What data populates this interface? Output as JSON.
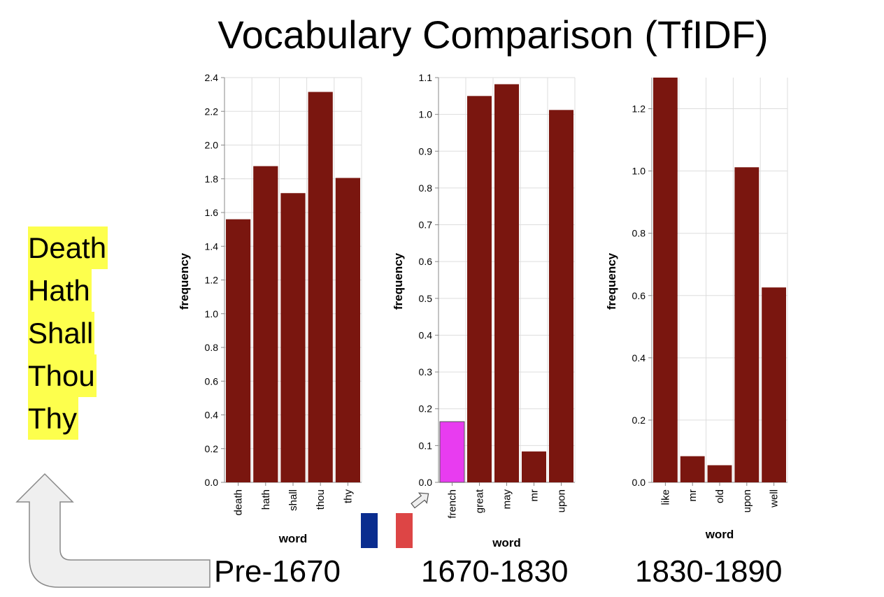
{
  "title": "Vocabulary Comparison (TfIDF)",
  "highlighted_words": [
    "Death",
    "Hath",
    "Shall",
    "Thou",
    "Thy"
  ],
  "periods": [
    "Pre-1670",
    "1670-1830",
    "1830-1890"
  ],
  "colors": {
    "bar": "#7a160f",
    "bar_highlight": "#e83cf0",
    "word_highlight": "#fdff4d",
    "flag_blue": "#0a2d8f",
    "flag_red": "#dd4545",
    "arrow_fill": "#efefef",
    "arrow_stroke": "#888888"
  },
  "icons": {
    "curved_arrow": "curved-arrow-icon",
    "pointer_arrow": "pointer-arrow-icon",
    "flag": "french-flag-icon"
  },
  "chart_data": [
    {
      "type": "bar",
      "categories": [
        "death",
        "hath",
        "shall",
        "thou",
        "thy"
      ],
      "values": [
        1.56,
        1.875,
        1.715,
        2.315,
        1.805
      ],
      "xlabel": "word",
      "ylabel": "frequency",
      "ylim": [
        0,
        2.4
      ],
      "ticks": [
        "0.0",
        "0.2",
        "0.4",
        "0.6",
        "0.8",
        "1.0",
        "1.2",
        "1.4",
        "1.6",
        "1.8",
        "2.0",
        "2.2",
        "2.4"
      ],
      "grid": true
    },
    {
      "type": "bar",
      "categories": [
        "french",
        "great",
        "may",
        "mr",
        "upon"
      ],
      "values": [
        0.165,
        1.05,
        1.082,
        0.084,
        1.012
      ],
      "highlight": "french",
      "xlabel": "word",
      "ylabel": "frequency",
      "ylim": [
        0,
        1.1
      ],
      "ticks": [
        "0.0",
        "0.1",
        "0.2",
        "0.3",
        "0.4",
        "0.5",
        "0.6",
        "0.7",
        "0.8",
        "0.9",
        "1.0",
        "1.1"
      ],
      "grid": true
    },
    {
      "type": "bar",
      "categories": [
        "like",
        "mr",
        "old",
        "upon",
        "well"
      ],
      "values": [
        1.3,
        0.084,
        0.055,
        1.012,
        0.626
      ],
      "xlabel": "word",
      "ylabel": "frequency",
      "ylim": [
        0,
        1.3
      ],
      "ticks": [
        "0.0",
        "0.2",
        "0.4",
        "0.6",
        "0.8",
        "1.0",
        "1.2"
      ],
      "grid": true
    }
  ]
}
